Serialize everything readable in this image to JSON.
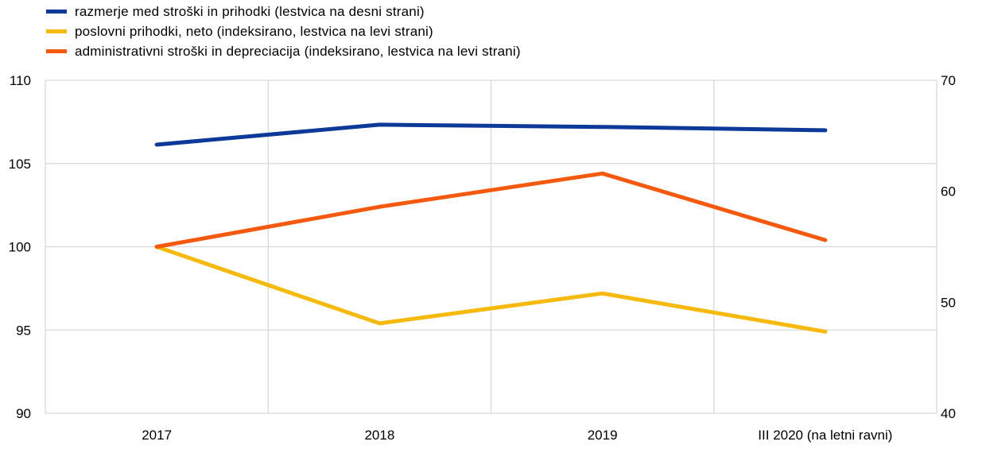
{
  "chart_data": {
    "type": "line",
    "categories": [
      "2017",
      "2018",
      "2019",
      "III 2020 (na letni ravni)"
    ],
    "series": [
      {
        "name": "razmerje med stroški in prihodki (lestvica na desni strani)",
        "axis": "right",
        "color": "#0d3a99",
        "values": [
          64.2,
          66.0,
          65.8,
          65.5
        ]
      },
      {
        "name": "poslovni prihodki, neto (indeksirano, lestvica na levi strani)",
        "axis": "left",
        "color": "#f6b90d",
        "values": [
          100.0,
          95.4,
          97.2,
          94.9
        ]
      },
      {
        "name": "administrativni stroški in depreciacija (indeksirano, lestvica na levi strani)",
        "axis": "left",
        "color": "#f45a0f",
        "values": [
          100.0,
          102.4,
          104.4,
          100.4
        ]
      }
    ],
    "y_left": {
      "min": 90,
      "max": 110,
      "ticks": [
        "90",
        "95",
        "100",
        "105",
        "110"
      ]
    },
    "y_right": {
      "min": 40,
      "max": 70,
      "ticks": [
        "40",
        "50",
        "60",
        "70"
      ]
    },
    "grid": true,
    "legend_position": "top-left"
  }
}
